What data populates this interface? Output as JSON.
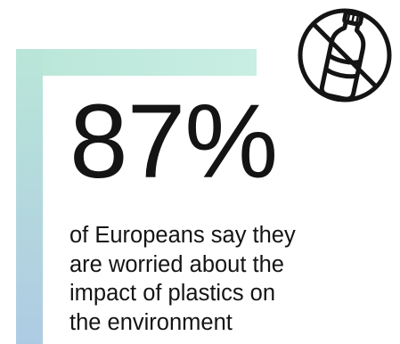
{
  "statistic": {
    "value": "87%",
    "caption_lines": [
      "of Europeans say they",
      "are worried about the",
      "impact of plastics on",
      "the environment"
    ]
  },
  "icon": {
    "name": "no-plastic-bottle-icon",
    "stroke_color": "#141414"
  },
  "colors": {
    "frame_gradient_start": "#b9e6d8",
    "frame_gradient_end": "#aecbe3",
    "text": "#141414"
  }
}
